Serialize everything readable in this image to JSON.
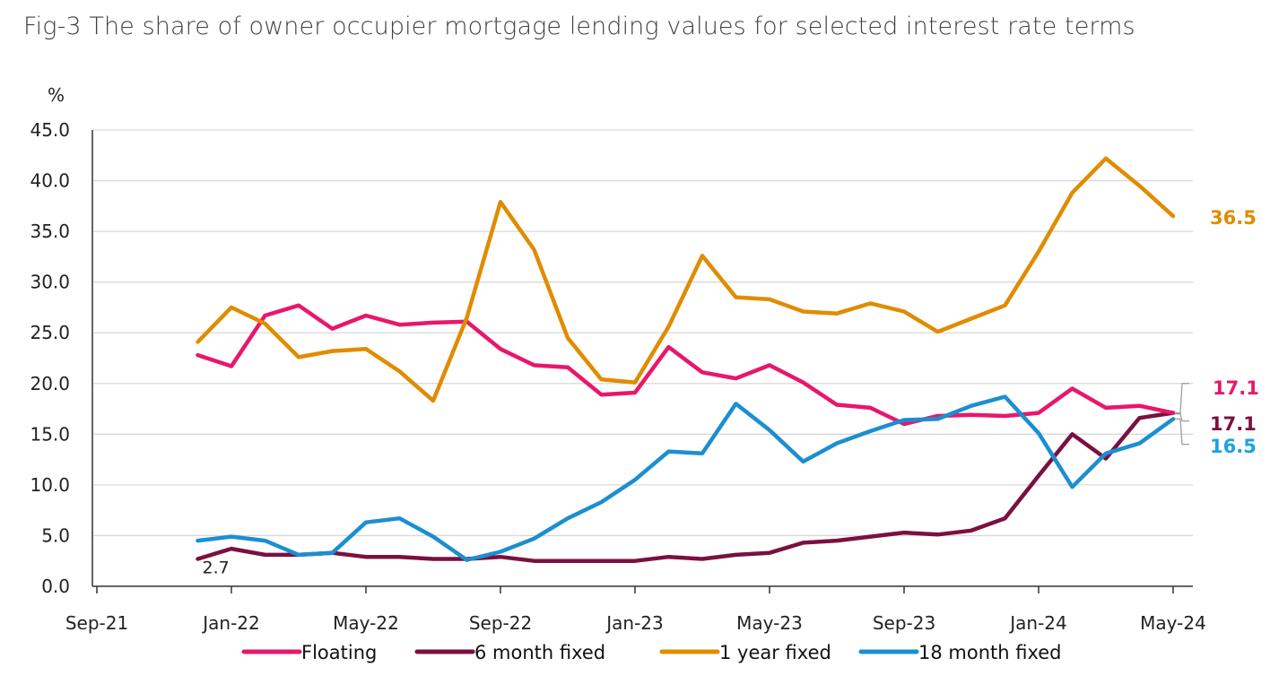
{
  "title": "Fig-3 The share of owner occupier mortgage lending values for selected interest rate terms",
  "chart_data": {
    "type": "line",
    "ylabel": "%",
    "ylim": [
      0,
      45
    ],
    "yticks": [
      "0.0",
      "5.0",
      "10.0",
      "15.0",
      "20.0",
      "25.0",
      "30.0",
      "35.0",
      "40.0",
      "45.0"
    ],
    "xtick_labels": [
      "Sep-21",
      "Jan-22",
      "May-22",
      "Sep-22",
      "Jan-23",
      "May-23",
      "Sep-23",
      "Jan-24",
      "May-24"
    ],
    "x": [
      "Dec-21",
      "Jan-22",
      "Feb-22",
      "Mar-22",
      "Apr-22",
      "May-22",
      "Jun-22",
      "Jul-22",
      "Aug-22",
      "Sep-22",
      "Oct-22",
      "Nov-22",
      "Dec-22",
      "Jan-23",
      "Feb-23",
      "Mar-23",
      "Apr-23",
      "May-23",
      "Jun-23",
      "Jul-23",
      "Aug-23",
      "Sep-23",
      "Oct-23",
      "Nov-23",
      "Dec-23",
      "Jan-24",
      "Feb-24",
      "Mar-24",
      "Apr-24",
      "May-24"
    ],
    "grid": true,
    "legend": "bottom",
    "series": [
      {
        "name": "Floating",
        "color": "#e8176b",
        "values": [
          22.8,
          21.7,
          26.7,
          27.7,
          25.4,
          26.7,
          25.8,
          26.0,
          26.1,
          23.4,
          21.8,
          21.6,
          18.9,
          19.1,
          23.6,
          21.1,
          20.5,
          21.8,
          20.1,
          17.9,
          17.6,
          16.0,
          16.8,
          16.9,
          16.8,
          17.1,
          19.5,
          17.6,
          17.8,
          17.1
        ]
      },
      {
        "name": "6 month fixed",
        "color": "#7b1040",
        "values": [
          2.7,
          3.7,
          3.1,
          3.1,
          3.3,
          2.9,
          2.9,
          2.7,
          2.7,
          2.9,
          2.5,
          2.5,
          2.5,
          2.5,
          2.9,
          2.7,
          3.1,
          3.3,
          4.3,
          4.5,
          4.9,
          5.3,
          5.1,
          5.5,
          6.7,
          10.9,
          15.0,
          12.6,
          16.6,
          17.1
        ]
      },
      {
        "name": "1 year fixed",
        "color": "#e08c00",
        "values": [
          24.1,
          27.5,
          25.9,
          22.6,
          23.2,
          23.4,
          21.2,
          18.3,
          26.5,
          37.9,
          33.2,
          24.5,
          20.4,
          20.1,
          25.6,
          32.6,
          28.5,
          28.3,
          27.1,
          26.9,
          27.9,
          27.1,
          25.1,
          26.4,
          27.7,
          33.0,
          38.8,
          42.2,
          39.5,
          36.5
        ]
      },
      {
        "name": "18 month fixed",
        "color": "#1b8fcf",
        "values": [
          4.5,
          4.9,
          4.5,
          3.1,
          3.3,
          6.3,
          6.7,
          4.9,
          2.6,
          3.4,
          4.7,
          6.7,
          8.3,
          10.5,
          13.3,
          13.1,
          18.0,
          15.4,
          12.3,
          14.1,
          15.3,
          16.4,
          16.5,
          17.8,
          18.7,
          15.1,
          9.8,
          13.1,
          14.1,
          16.5
        ]
      }
    ],
    "end_labels": [
      {
        "text": "36.5",
        "color": "#e08c00"
      },
      {
        "text": "17.1",
        "color": "#e8176b"
      },
      {
        "text": "17.1",
        "color": "#7b1040"
      },
      {
        "text": "16.5",
        "color": "#1ba3e0"
      }
    ],
    "annotations": [
      {
        "text": "2.7"
      }
    ]
  }
}
